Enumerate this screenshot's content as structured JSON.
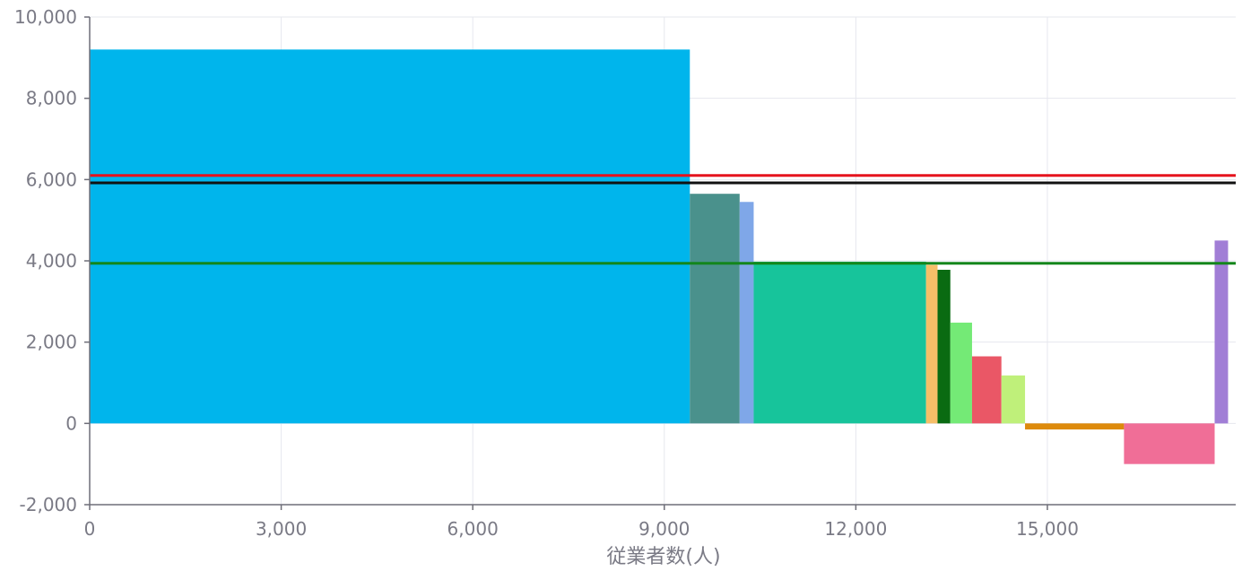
{
  "chart_data": {
    "type": "bar",
    "variant": "variable-width bars (marimekko-style), bars placed side by side along the x axis",
    "title": "",
    "xlabel": "従業者数(人)",
    "ylabel": "",
    "xlim": [
      0,
      17950
    ],
    "ylim": [
      -2000,
      10000
    ],
    "x_ticks": [
      0,
      3000,
      6000,
      9000,
      12000,
      15000
    ],
    "x_tick_labels": [
      "0",
      "3,000",
      "6,000",
      "9,000",
      "12,000",
      "15,000"
    ],
    "y_ticks": [
      -2000,
      0,
      2000,
      4000,
      6000,
      8000,
      10000
    ],
    "y_tick_labels": [
      "-2,000",
      "0",
      "2,000",
      "4,000",
      "6,000",
      "8,000",
      "10,000"
    ],
    "grid": true,
    "legend": "none",
    "bars": [
      {
        "x0": 0,
        "x1": 9400,
        "value": 9200,
        "color": "#00b5ec"
      },
      {
        "x0": 9400,
        "x1": 10180,
        "value": 5650,
        "color": "#4a918c"
      },
      {
        "x0": 10180,
        "x1": 10400,
        "value": 5450,
        "color": "#7fa7e8"
      },
      {
        "x0": 10400,
        "x1": 13100,
        "value": 3980,
        "color": "#17c49b"
      },
      {
        "x0": 13100,
        "x1": 13280,
        "value": 3900,
        "color": "#f6bf68"
      },
      {
        "x0": 13280,
        "x1": 13480,
        "value": 3780,
        "color": "#0a6b12"
      },
      {
        "x0": 13480,
        "x1": 13820,
        "value": 2480,
        "color": "#74ea76"
      },
      {
        "x0": 13820,
        "x1": 14280,
        "value": 1650,
        "color": "#ea5766"
      },
      {
        "x0": 14280,
        "x1": 14650,
        "value": 1180,
        "color": "#bff07a"
      },
      {
        "x0": 14650,
        "x1": 16200,
        "value": -150,
        "color": "#dd8a0c"
      },
      {
        "x0": 16200,
        "x1": 17620,
        "value": -1000,
        "color": "#f06e97"
      },
      {
        "x0": 17620,
        "x1": 17830,
        "value": 4500,
        "color": "#a17ed6"
      }
    ],
    "reference_lines": [
      {
        "value": 6100,
        "color": "#e5121c"
      },
      {
        "value": 5920,
        "color": "#111111"
      },
      {
        "value": 3940,
        "color": "#13861b"
      }
    ]
  }
}
